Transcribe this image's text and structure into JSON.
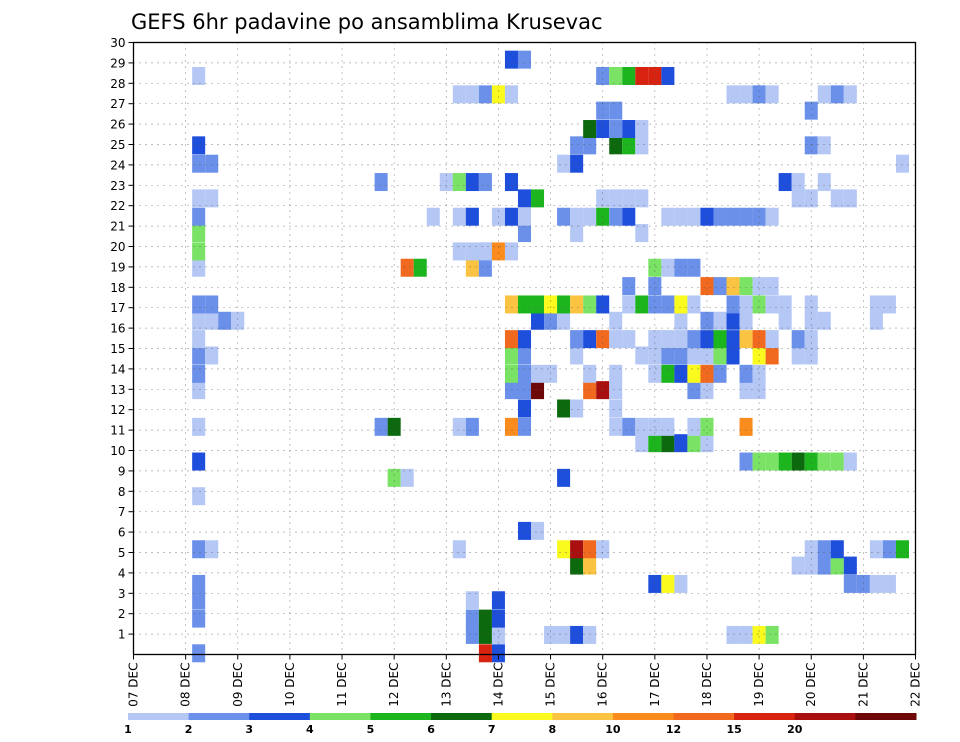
{
  "chart_data": {
    "type": "heatmap",
    "title": "GEFS 6hr padavine po ansamblima Krusevac",
    "xlabel": "",
    "ylabel": "",
    "x_range": [
      0,
      15
    ],
    "x_ticks": [
      "07 DEC",
      "08 DEC",
      "09 DEC",
      "10 DEC",
      "11 DEC",
      "12 DEC",
      "13 DEC",
      "14 DEC",
      "15 DEC",
      "16 DEC",
      "17 DEC",
      "18 DEC",
      "19 DEC",
      "20 DEC",
      "21 DEC",
      "22 DEC"
    ],
    "y_ticks": [
      "1",
      "2",
      "3",
      "4",
      "5",
      "6",
      "7",
      "8",
      "9",
      "10",
      "11",
      "12",
      "13",
      "14",
      "15",
      "16",
      "17",
      "18",
      "19",
      "20",
      "21",
      "22",
      "23",
      "24",
      "25",
      "26",
      "27",
      "28",
      "29",
      "30"
    ],
    "y_range": [
      0,
      30
    ],
    "grid": true,
    "legend": "bottom",
    "colorbar": {
      "levels": [
        "1",
        "2",
        "3",
        "4",
        "5",
        "6",
        "7",
        "8",
        "10",
        "12",
        "15",
        "20"
      ],
      "colors": [
        "#b4c7f5",
        "#6b90ea",
        "#1e4fdc",
        "#7ae366",
        "#1db51d",
        "#0d690d",
        "#fafa1e",
        "#fac341",
        "#fa8c1e",
        "#f0691e",
        "#d7230f",
        "#aa0f0f",
        "#6e0808"
      ]
    },
    "colorbar_ticks": [
      "1",
      "2",
      "3",
      "4",
      "5",
      "6",
      "7",
      "8",
      "10",
      "12",
      "15",
      "20"
    ],
    "cells": [
      [
        1.25,
        0,
        1
      ],
      [
        6.75,
        0,
        10
      ],
      [
        7,
        0,
        2
      ],
      [
        6.5,
        1,
        1
      ],
      [
        6.75,
        1,
        5
      ],
      [
        7,
        1,
        0
      ],
      [
        8,
        1,
        0
      ],
      [
        8.25,
        1,
        0
      ],
      [
        8.5,
        1,
        2
      ],
      [
        8.75,
        1,
        0
      ],
      [
        11.5,
        1,
        0
      ],
      [
        11.75,
        1,
        0
      ],
      [
        12,
        1,
        6
      ],
      [
        12.25,
        1,
        3
      ],
      [
        1.25,
        2,
        1
      ],
      [
        6.5,
        2,
        1
      ],
      [
        6.75,
        2,
        5
      ],
      [
        7,
        2,
        2
      ],
      [
        1.25,
        3,
        1
      ],
      [
        6.5,
        3,
        0
      ],
      [
        7,
        3,
        2
      ],
      [
        1.25,
        4,
        1
      ],
      [
        10,
        4,
        2
      ],
      [
        10.25,
        4,
        6
      ],
      [
        10.5,
        4,
        0
      ],
      [
        13.75,
        4,
        1
      ],
      [
        14,
        4,
        1
      ],
      [
        14.25,
        4,
        0
      ],
      [
        14.5,
        4,
        0
      ],
      [
        12.75,
        5,
        0
      ],
      [
        13,
        5,
        0
      ],
      [
        13.25,
        5,
        1
      ],
      [
        13.5,
        5,
        3
      ],
      [
        13.75,
        5,
        2
      ],
      [
        8.5,
        5,
        5
      ],
      [
        8.75,
        5,
        7
      ],
      [
        1.25,
        6,
        1
      ],
      [
        1.5,
        6,
        0
      ],
      [
        6.25,
        6,
        0
      ],
      [
        8.25,
        6,
        6
      ],
      [
        8.5,
        6,
        11
      ],
      [
        8.75,
        6,
        9
      ],
      [
        9,
        6,
        0
      ],
      [
        13,
        6,
        0
      ],
      [
        13.25,
        6,
        1
      ],
      [
        13.5,
        6,
        2
      ],
      [
        14.25,
        6,
        0
      ],
      [
        14.5,
        6,
        1
      ],
      [
        14.75,
        6,
        4
      ],
      [
        7.5,
        7,
        2
      ],
      [
        7.75,
        7,
        0
      ],
      [
        1.25,
        9,
        0
      ],
      [
        5,
        10,
        3
      ],
      [
        5.25,
        10,
        0
      ],
      [
        8.25,
        10,
        2
      ],
      [
        1.25,
        11,
        2
      ],
      [
        11.75,
        11,
        1
      ],
      [
        12,
        11,
        3
      ],
      [
        12.25,
        11,
        3
      ],
      [
        12.5,
        11,
        4
      ],
      [
        12.75,
        11,
        5
      ],
      [
        13,
        11,
        4
      ],
      [
        13.25,
        11,
        3
      ],
      [
        13.5,
        11,
        3
      ],
      [
        13.75,
        11,
        0
      ],
      [
        9.75,
        12,
        0
      ],
      [
        10,
        12,
        4
      ],
      [
        10.25,
        12,
        5
      ],
      [
        10.5,
        12,
        2
      ],
      [
        10.75,
        12,
        3
      ],
      [
        11,
        12,
        0
      ],
      [
        1.25,
        13,
        0
      ],
      [
        4.75,
        13,
        1
      ],
      [
        5,
        13,
        5
      ],
      [
        6.25,
        13,
        0
      ],
      [
        6.5,
        13,
        1
      ],
      [
        7.25,
        13,
        8
      ],
      [
        7.5,
        13,
        1
      ],
      [
        9.25,
        13,
        0
      ],
      [
        9.5,
        13,
        1
      ],
      [
        9.75,
        13,
        0
      ],
      [
        10,
        13,
        0
      ],
      [
        10.25,
        13,
        0
      ],
      [
        10.75,
        13,
        0
      ],
      [
        11,
        13,
        3
      ],
      [
        11.75,
        13,
        8
      ],
      [
        7.5,
        14,
        2
      ],
      [
        8.25,
        14,
        5
      ],
      [
        8.5,
        14,
        0
      ],
      [
        9.25,
        14,
        0
      ],
      [
        1.25,
        15,
        0
      ],
      [
        7.25,
        15,
        1
      ],
      [
        7.5,
        15,
        1
      ],
      [
        7.75,
        15,
        12
      ],
      [
        8.75,
        15,
        9
      ],
      [
        9,
        15,
        11
      ],
      [
        9.25,
        15,
        0
      ],
      [
        10.75,
        15,
        1
      ],
      [
        11,
        15,
        0
      ],
      [
        11.75,
        15,
        0
      ],
      [
        12,
        15,
        0
      ],
      [
        1.25,
        16,
        1
      ],
      [
        7.25,
        16,
        3
      ],
      [
        7.5,
        16,
        1
      ],
      [
        7.75,
        16,
        0
      ],
      [
        8,
        16,
        0
      ],
      [
        8.75,
        16,
        0
      ],
      [
        9.25,
        16,
        0
      ],
      [
        10,
        16,
        0
      ],
      [
        10.25,
        16,
        4
      ],
      [
        10.5,
        16,
        2
      ],
      [
        10.75,
        16,
        6
      ],
      [
        11,
        16,
        9
      ],
      [
        11.25,
        16,
        1
      ],
      [
        11.75,
        16,
        1
      ],
      [
        12,
        16,
        0
      ],
      [
        1.25,
        17,
        1
      ],
      [
        1.5,
        17,
        0
      ],
      [
        7.25,
        17,
        3
      ],
      [
        7.5,
        17,
        1
      ],
      [
        8.5,
        17,
        0
      ],
      [
        9.75,
        17,
        0
      ],
      [
        10,
        17,
        0
      ],
      [
        10.25,
        17,
        1
      ],
      [
        10.5,
        17,
        1
      ],
      [
        10.75,
        17,
        0
      ],
      [
        11,
        17,
        0
      ],
      [
        11.25,
        17,
        3
      ],
      [
        11.5,
        17,
        2
      ],
      [
        12,
        17,
        6
      ],
      [
        12.25,
        17,
        9
      ],
      [
        12.75,
        17,
        0
      ],
      [
        13,
        17,
        0
      ],
      [
        1.25,
        18,
        0
      ],
      [
        7.25,
        18,
        9
      ],
      [
        7.5,
        18,
        2
      ],
      [
        8.5,
        18,
        1
      ],
      [
        8.75,
        18,
        2
      ],
      [
        9,
        18,
        9
      ],
      [
        9.25,
        18,
        0
      ],
      [
        9.5,
        18,
        0
      ],
      [
        10,
        18,
        0
      ],
      [
        10.25,
        18,
        0
      ],
      [
        10.5,
        18,
        0
      ],
      [
        10.75,
        18,
        1
      ],
      [
        11,
        18,
        2
      ],
      [
        11.25,
        18,
        4
      ],
      [
        11.5,
        18,
        2
      ],
      [
        11.75,
        18,
        7
      ],
      [
        12,
        18,
        9
      ],
      [
        12.25,
        18,
        0
      ],
      [
        12.75,
        18,
        1
      ],
      [
        13,
        18,
        0
      ],
      [
        1.25,
        19,
        0
      ],
      [
        1.5,
        19,
        0
      ],
      [
        1.75,
        19,
        1
      ],
      [
        2,
        19,
        0
      ],
      [
        7.75,
        19,
        2
      ],
      [
        8,
        19,
        1
      ],
      [
        8.25,
        19,
        0
      ],
      [
        9.25,
        19,
        0
      ],
      [
        10.5,
        19,
        0
      ],
      [
        11,
        19,
        1
      ],
      [
        11.25,
        19,
        0
      ],
      [
        11.5,
        19,
        2
      ],
      [
        11.75,
        19,
        0
      ],
      [
        12.5,
        19,
        0
      ],
      [
        13,
        19,
        0
      ],
      [
        13.25,
        19,
        0
      ],
      [
        14.25,
        19,
        0
      ],
      [
        1.25,
        20,
        1
      ],
      [
        1.5,
        20,
        1
      ],
      [
        7.25,
        20,
        7
      ],
      [
        7.5,
        20,
        4
      ],
      [
        7.75,
        20,
        4
      ],
      [
        8,
        20,
        6
      ],
      [
        8.25,
        20,
        4
      ],
      [
        8.5,
        20,
        7
      ],
      [
        8.75,
        20,
        3
      ],
      [
        9,
        20,
        2
      ],
      [
        9.5,
        20,
        0
      ],
      [
        9.75,
        20,
        4
      ],
      [
        10,
        20,
        1
      ],
      [
        10.25,
        20,
        1
      ],
      [
        10.5,
        20,
        6
      ],
      [
        10.75,
        20,
        0
      ],
      [
        11.5,
        20,
        1
      ],
      [
        11.75,
        20,
        0
      ],
      [
        12,
        20,
        3
      ],
      [
        12.25,
        20,
        0
      ],
      [
        12.5,
        20,
        0
      ],
      [
        13,
        20,
        0
      ],
      [
        14.25,
        20,
        0
      ],
      [
        14.5,
        20,
        0
      ],
      [
        9.5,
        21,
        1
      ],
      [
        10,
        21,
        1
      ],
      [
        11,
        21,
        9
      ],
      [
        11.25,
        21,
        1
      ],
      [
        11.5,
        21,
        7
      ],
      [
        11.75,
        21,
        3
      ],
      [
        12,
        21,
        0
      ],
      [
        12.25,
        21,
        0
      ],
      [
        1.25,
        22,
        0
      ],
      [
        5.25,
        22,
        9
      ],
      [
        5.5,
        22,
        4
      ],
      [
        6.5,
        22,
        7
      ],
      [
        6.75,
        22,
        1
      ],
      [
        10,
        22,
        3
      ],
      [
        10.25,
        22,
        0
      ],
      [
        10.5,
        22,
        1
      ],
      [
        10.75,
        22,
        1
      ],
      [
        1.25,
        23,
        3
      ],
      [
        6.25,
        23,
        0
      ],
      [
        6.5,
        23,
        0
      ],
      [
        6.75,
        23,
        1
      ],
      [
        6.75,
        23.01,
        0
      ],
      [
        7,
        23,
        8
      ],
      [
        7.25,
        23,
        0
      ],
      [
        1.25,
        24,
        3
      ],
      [
        7.5,
        24,
        1
      ],
      [
        8.5,
        24,
        0
      ],
      [
        9.75,
        24,
        0
      ],
      [
        1.25,
        25,
        1
      ],
      [
        5.75,
        25,
        0
      ],
      [
        6.25,
        25,
        0
      ],
      [
        6.5,
        25,
        2
      ],
      [
        7,
        25,
        0
      ],
      [
        7.25,
        25,
        2
      ],
      [
        7.5,
        25,
        0
      ],
      [
        8.25,
        25,
        1
      ],
      [
        8.5,
        25,
        0
      ],
      [
        8.75,
        25,
        0
      ],
      [
        9,
        25,
        4
      ],
      [
        9.25,
        25,
        1
      ],
      [
        9.5,
        25,
        2
      ],
      [
        10.25,
        25,
        0
      ],
      [
        10.5,
        25,
        0
      ],
      [
        10.75,
        25,
        0
      ],
      [
        11,
        25,
        2
      ],
      [
        11.25,
        25,
        1
      ],
      [
        11.5,
        25,
        1
      ],
      [
        11.75,
        25,
        1
      ],
      [
        12,
        25,
        1
      ],
      [
        12.25,
        25,
        0
      ],
      [
        1.25,
        26,
        0
      ],
      [
        1.5,
        26,
        0
      ],
      [
        7.5,
        26,
        2
      ],
      [
        7.75,
        26,
        4
      ],
      [
        9,
        26,
        0
      ],
      [
        9.25,
        26,
        0
      ],
      [
        9.5,
        26,
        0
      ],
      [
        9.75,
        26,
        0
      ],
      [
        12.75,
        26,
        0
      ],
      [
        13,
        26,
        0
      ],
      [
        13.5,
        26,
        0
      ],
      [
        13.75,
        26,
        0
      ],
      [
        4.75,
        27,
        1
      ],
      [
        6.0,
        27,
        0
      ],
      [
        6.25,
        27,
        3
      ],
      [
        6.5,
        27,
        2
      ],
      [
        6.75,
        27,
        1
      ],
      [
        7.25,
        27,
        2
      ],
      [
        12.5,
        27,
        2
      ],
      [
        12.75,
        27,
        0
      ],
      [
        13.25,
        27,
        0
      ],
      [
        1.25,
        28,
        1
      ],
      [
        1.5,
        28,
        1
      ],
      [
        8.25,
        28,
        0
      ],
      [
        8.5,
        28,
        2
      ],
      [
        14.75,
        28,
        0
      ],
      [
        1.25,
        29,
        2
      ],
      [
        8.5,
        29,
        1
      ],
      [
        8.75,
        29,
        1
      ],
      [
        9.25,
        29,
        5
      ],
      [
        9.5,
        29,
        4
      ],
      [
        9.75,
        29,
        0
      ],
      [
        13,
        29,
        1
      ],
      [
        13.25,
        29,
        0
      ],
      [
        8.75,
        30,
        5
      ],
      [
        9,
        30,
        2
      ],
      [
        9.25,
        30,
        1
      ],
      [
        9.5,
        30,
        2
      ],
      [
        9.75,
        30,
        0
      ],
      [
        9,
        31,
        1
      ],
      [
        9.25,
        31,
        1
      ],
      [
        13,
        31,
        1
      ],
      [
        6.25,
        32,
        0
      ],
      [
        6.5,
        32,
        0
      ],
      [
        6.75,
        32,
        1
      ],
      [
        7,
        32,
        6
      ],
      [
        7.25,
        32,
        0
      ],
      [
        11.5,
        32,
        0
      ],
      [
        11.75,
        32,
        0
      ],
      [
        12,
        32,
        1
      ],
      [
        12.25,
        32,
        0
      ],
      [
        13.25,
        32,
        0
      ],
      [
        13.5,
        32,
        1
      ],
      [
        13.75,
        32,
        0
      ],
      [
        1.25,
        33,
        0
      ],
      [
        9,
        33,
        1
      ],
      [
        9.25,
        33,
        3
      ],
      [
        9.5,
        33,
        4
      ],
      [
        9.75,
        33,
        10
      ],
      [
        10,
        33,
        10
      ],
      [
        10.25,
        33,
        2
      ],
      [
        7.25,
        34,
        2
      ],
      [
        7.5,
        34,
        1
      ]
    ]
  }
}
